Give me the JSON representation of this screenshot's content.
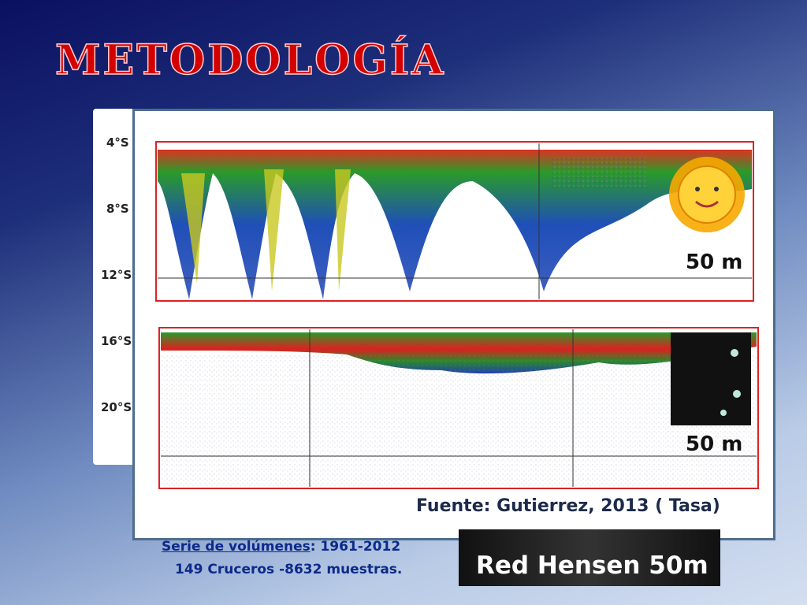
{
  "header": {
    "title": "METODOLOGÍA"
  },
  "latitudes": [
    "4°S",
    "8°S",
    "12°S",
    "16°S",
    "20°S"
  ],
  "echograms": [
    {
      "depth": "50 m"
    },
    {
      "depth": "50 m"
    }
  ],
  "source": "Fuente: Gutierrez, 2013 ( Tasa)",
  "series": {
    "label": "Serie de volúmenes",
    "range": ": 1961-2012",
    "detail": "149 Cruceros -8632 muestras."
  },
  "photo_caption": "Red Hensen 50m"
}
